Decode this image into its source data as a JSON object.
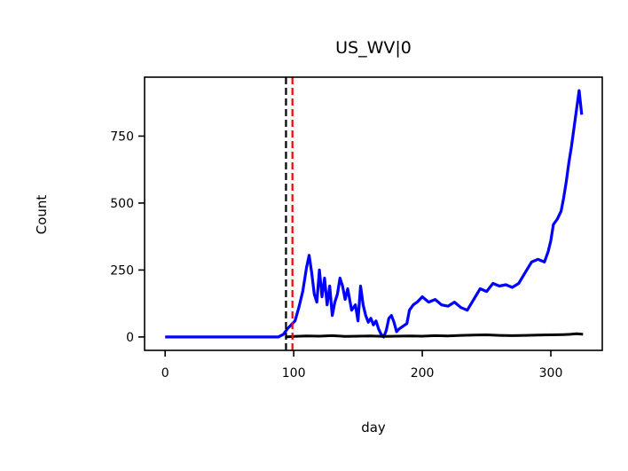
{
  "chart_data": {
    "type": "line",
    "title": "US_WV|0",
    "xlabel": "day",
    "ylabel": "Count",
    "xlim": [
      -16,
      340
    ],
    "ylim": [
      -50,
      970
    ],
    "xticks": [
      0,
      100,
      200,
      300
    ],
    "yticks": [
      0,
      250,
      500,
      750
    ],
    "grid": false,
    "legend": "none",
    "vlines": [
      {
        "x": 94,
        "color": "#000000",
        "style": "dashed"
      },
      {
        "x": 99,
        "color": "#ff0000",
        "style": "dashed"
      }
    ],
    "series": [
      {
        "color": "#0000ff",
        "x": [
          0,
          88,
          92,
          95,
          98,
          101,
          104,
          107,
          110,
          112,
          114,
          116,
          118,
          120,
          122,
          124,
          126,
          128,
          130,
          132,
          134,
          136,
          138,
          140,
          142,
          145,
          148,
          150,
          152,
          154,
          156,
          158,
          160,
          162,
          164,
          166,
          168,
          170,
          172,
          174,
          176,
          178,
          180,
          182,
          185,
          188,
          190,
          193,
          196,
          200,
          205,
          210,
          215,
          220,
          225,
          230,
          235,
          240,
          245,
          250,
          255,
          260,
          265,
          270,
          275,
          280,
          285,
          290,
          295,
          298,
          300,
          302,
          305,
          308,
          310,
          312,
          314,
          316,
          318,
          320,
          322,
          324
        ],
        "values": [
          0,
          0,
          10,
          30,
          45,
          60,
          110,
          170,
          260,
          305,
          240,
          160,
          130,
          250,
          150,
          220,
          120,
          190,
          80,
          130,
          160,
          220,
          190,
          140,
          180,
          100,
          120,
          60,
          190,
          120,
          80,
          55,
          70,
          45,
          60,
          30,
          10,
          0,
          25,
          70,
          80,
          55,
          20,
          30,
          40,
          50,
          100,
          120,
          130,
          150,
          130,
          140,
          120,
          115,
          130,
          110,
          100,
          140,
          180,
          170,
          200,
          190,
          195,
          185,
          200,
          240,
          280,
          290,
          280,
          320,
          360,
          420,
          440,
          470,
          520,
          580,
          650,
          710,
          780,
          850,
          920,
          830
        ]
      },
      {
        "color": "#000000",
        "x": [
          94,
          100,
          110,
          120,
          130,
          140,
          150,
          160,
          170,
          180,
          190,
          200,
          210,
          220,
          230,
          240,
          250,
          260,
          270,
          280,
          290,
          300,
          310,
          315,
          320,
          325
        ],
        "values": [
          0,
          2,
          4,
          3,
          5,
          2,
          3,
          4,
          2,
          3,
          4,
          3,
          5,
          4,
          6,
          7,
          8,
          6,
          5,
          6,
          7,
          8,
          9,
          10,
          12,
          10
        ]
      }
    ]
  }
}
